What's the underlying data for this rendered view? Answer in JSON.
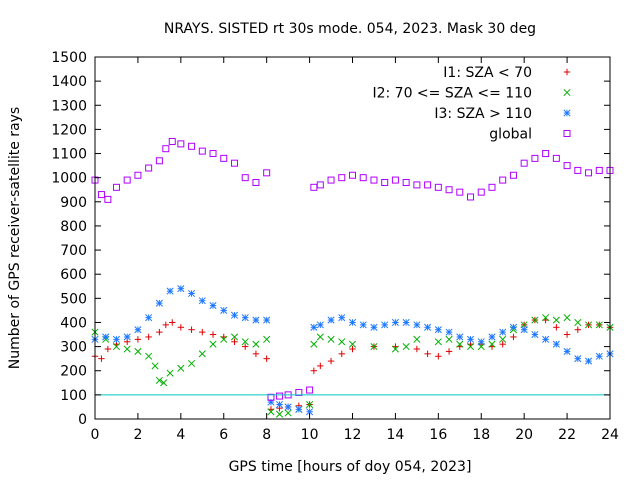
{
  "chart_data": {
    "type": "scatter",
    "title": "NRAYS. SISTED rt 30s mode. 054, 2023. Mask 30 deg",
    "xlabel": "GPS time [hours of doy 054, 2023]",
    "ylabel": "Number of GPS receiver-satellite rays",
    "xlim": [
      0,
      24
    ],
    "ylim": [
      0,
      1500
    ],
    "xticks": [
      "0",
      "2",
      "4",
      "6",
      "8",
      "10",
      "12",
      "14",
      "16",
      "18",
      "20",
      "22",
      "24"
    ],
    "yticks": [
      "0",
      "100",
      "200",
      "300",
      "400",
      "500",
      "600",
      "700",
      "800",
      "900",
      "1000",
      "1100",
      "1200",
      "1300",
      "1400",
      "1500"
    ],
    "grid": false,
    "legend_position": "top-right",
    "reference_line": {
      "y": 100,
      "color": "#00c8c8"
    },
    "series": [
      {
        "name": "I1: SZA < 70",
        "marker": "+",
        "color": "#e00000",
        "x": [
          0,
          0.3,
          0.6,
          1,
          1.5,
          2,
          2.5,
          3,
          3.3,
          3.6,
          4,
          4.5,
          5,
          5.5,
          6,
          6.5,
          7,
          7.5,
          8,
          8.2,
          8.6,
          9,
          9.5,
          10,
          10.2,
          10.5,
          11,
          11.5,
          12,
          13,
          14,
          15,
          15.5,
          16,
          16.5,
          17,
          17.5,
          18,
          18.5,
          19,
          19.5,
          20,
          20.5,
          21,
          21.5,
          22,
          22.5,
          23,
          23.5,
          24
        ],
        "values": [
          260,
          250,
          290,
          310,
          320,
          330,
          340,
          360,
          390,
          400,
          380,
          370,
          360,
          350,
          340,
          320,
          300,
          270,
          250,
          40,
          45,
          50,
          55,
          60,
          200,
          220,
          240,
          270,
          290,
          300,
          300,
          290,
          270,
          260,
          280,
          300,
          310,
          310,
          300,
          310,
          340,
          390,
          410,
          410,
          380,
          350,
          370,
          390,
          390,
          380
        ]
      },
      {
        "name": "I2: 70 <= SZA <= 110",
        "marker": "x",
        "color": "#00b000",
        "x": [
          0,
          0.5,
          1,
          1.5,
          2,
          2.5,
          2.8,
          3,
          3.2,
          3.5,
          4,
          4.5,
          5,
          5.5,
          6,
          6.5,
          7,
          7.5,
          8,
          8.2,
          8.6,
          9,
          9.5,
          10,
          10.2,
          10.5,
          11,
          11.5,
          12,
          13,
          14,
          14.5,
          15,
          16,
          16.5,
          17,
          17.5,
          18,
          18.5,
          19,
          19.5,
          20,
          20.5,
          21,
          21.5,
          22,
          22.5,
          23,
          23.5,
          24
        ],
        "values": [
          360,
          330,
          300,
          290,
          280,
          260,
          220,
          160,
          150,
          190,
          210,
          230,
          270,
          310,
          330,
          340,
          320,
          310,
          330,
          30,
          20,
          25,
          40,
          60,
          310,
          340,
          330,
          320,
          310,
          300,
          290,
          300,
          330,
          320,
          330,
          310,
          300,
          300,
          310,
          330,
          370,
          390,
          410,
          420,
          410,
          420,
          400,
          390,
          390,
          380
        ]
      },
      {
        "name": "I3: SZA > 110",
        "marker": "*",
        "color": "#1e78ff",
        "x": [
          0,
          0.5,
          1,
          1.5,
          2,
          2.5,
          3,
          3.5,
          4,
          4.5,
          5,
          5.5,
          6,
          6.5,
          7,
          7.5,
          8,
          8.2,
          8.6,
          9,
          9.5,
          10,
          10.2,
          10.5,
          11,
          11.5,
          12,
          12.5,
          13,
          13.5,
          14,
          14.5,
          15,
          15.5,
          16,
          16.5,
          17,
          17.5,
          18,
          18.5,
          19,
          19.5,
          20,
          20.5,
          21,
          21.5,
          22,
          22.5,
          23,
          23.5,
          24
        ],
        "values": [
          330,
          340,
          330,
          340,
          370,
          420,
          480,
          530,
          540,
          520,
          490,
          470,
          450,
          430,
          420,
          410,
          410,
          70,
          60,
          50,
          40,
          30,
          380,
          390,
          410,
          420,
          400,
          390,
          380,
          390,
          400,
          400,
          390,
          380,
          370,
          360,
          340,
          330,
          320,
          340,
          360,
          380,
          370,
          350,
          330,
          310,
          280,
          250,
          240,
          260,
          270
        ]
      },
      {
        "name": "global",
        "marker": "square",
        "color": "#b000ff",
        "x": [
          0,
          0.3,
          0.6,
          1,
          1.5,
          2,
          2.5,
          3,
          3.3,
          3.6,
          4,
          4.5,
          5,
          5.5,
          6,
          6.5,
          7,
          7.5,
          8,
          8.2,
          8.6,
          9,
          9.5,
          10,
          10.2,
          10.5,
          11,
          11.5,
          12,
          12.5,
          13,
          13.5,
          14,
          14.5,
          15,
          15.5,
          16,
          16.5,
          17,
          17.5,
          18,
          18.5,
          19,
          19.5,
          20,
          20.5,
          21,
          21.5,
          22,
          22.5,
          23,
          23.5,
          24
        ],
        "values": [
          990,
          930,
          910,
          960,
          990,
          1010,
          1040,
          1070,
          1120,
          1150,
          1140,
          1130,
          1110,
          1100,
          1080,
          1060,
          1000,
          980,
          1020,
          90,
          95,
          100,
          110,
          120,
          960,
          970,
          990,
          1000,
          1010,
          1000,
          990,
          980,
          990,
          980,
          970,
          970,
          960,
          950,
          940,
          920,
          940,
          960,
          990,
          1010,
          1060,
          1080,
          1100,
          1080,
          1050,
          1030,
          1020,
          1030,
          1030
        ]
      }
    ]
  }
}
